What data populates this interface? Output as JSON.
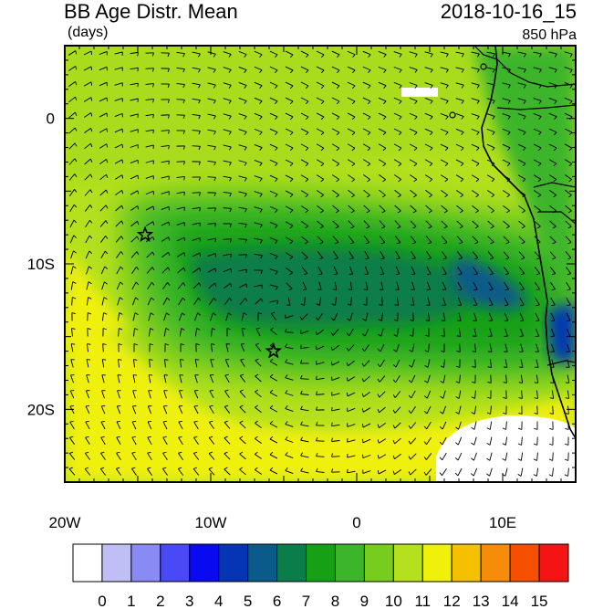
{
  "header": {
    "title": "BB Age Distr. Mean",
    "units": "(days)",
    "datetime": "2018-10-16_15",
    "level": "850 hPa"
  },
  "axes": {
    "x_ticks": [
      {
        "lon": -20,
        "label": "20W"
      },
      {
        "lon": -10,
        "label": "10W"
      },
      {
        "lon": 0,
        "label": "0"
      },
      {
        "lon": 10,
        "label": "10E"
      }
    ],
    "y_ticks": [
      {
        "lat": 0,
        "label": "0"
      },
      {
        "lat": -10,
        "label": "10S"
      },
      {
        "lat": -20,
        "label": "20S"
      }
    ],
    "lon_range": [
      -20,
      15
    ],
    "lat_range": [
      -25,
      5
    ]
  },
  "colorbar": {
    "labels": [
      "0",
      "1",
      "2",
      "3",
      "4",
      "5",
      "6",
      "7",
      "8",
      "9",
      "10",
      "11",
      "12",
      "13",
      "14",
      "15"
    ],
    "colors": [
      "#ffffff",
      "#bfbff5",
      "#8a8af5",
      "#4a4af5",
      "#0a0af0",
      "#0535b5",
      "#0a5a8a",
      "#0a7d4a",
      "#16a016",
      "#3cb52a",
      "#78cc1e",
      "#b4e01e",
      "#f0f00a",
      "#f5c000",
      "#f58c0a",
      "#f55000",
      "#f51414"
    ]
  },
  "markers": [
    {
      "name": "star",
      "lon": -14.5,
      "lat": -8
    },
    {
      "name": "star",
      "lon": -5.7,
      "lat": -16
    }
  ]
}
